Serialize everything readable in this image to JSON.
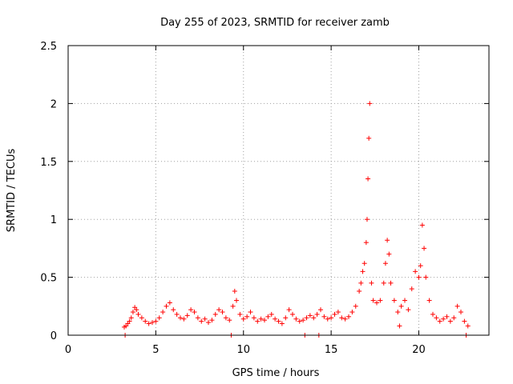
{
  "chart_data": {
    "type": "scatter",
    "title": "Day 255 of 2023, SRMTID for receiver zamb",
    "xlabel": "GPS time / hours",
    "ylabel": "SRMTID / TECUs",
    "xlim": [
      0,
      24
    ],
    "ylim": [
      0,
      2.5
    ],
    "grid": true,
    "marker": "+",
    "marker_color": "#ff0000",
    "x_ticks": [
      0,
      5,
      10,
      15,
      20
    ],
    "x_tick_labels": [
      "0",
      "5",
      "10",
      "15",
      "20"
    ],
    "y_ticks": [
      0,
      0.5,
      1,
      1.5,
      2,
      2.5
    ],
    "y_tick_labels": [
      "0",
      "0.5",
      "1",
      "1.5",
      "2",
      "2.5"
    ],
    "series": [
      {
        "name": "SRMTID",
        "x": [
          3.2,
          3.3,
          3.4,
          3.5,
          3.6,
          3.7,
          3.8,
          3.9,
          4.0,
          4.2,
          4.4,
          4.6,
          4.8,
          5.0,
          5.2,
          5.4,
          5.6,
          5.8,
          6.0,
          6.2,
          6.4,
          6.6,
          6.8,
          7.0,
          7.2,
          7.4,
          7.6,
          7.8,
          8.0,
          8.2,
          8.4,
          8.6,
          8.8,
          9.0,
          9.2,
          9.4,
          9.5,
          9.6,
          9.8,
          10.0,
          10.2,
          10.4,
          10.6,
          10.8,
          11.0,
          11.2,
          11.4,
          11.6,
          11.8,
          12.0,
          12.2,
          12.4,
          12.6,
          12.8,
          13.0,
          13.2,
          13.4,
          13.6,
          13.8,
          14.0,
          14.2,
          14.4,
          14.6,
          14.8,
          15.0,
          15.2,
          15.4,
          15.6,
          15.8,
          16.0,
          16.2,
          16.4,
          16.6,
          16.7,
          16.8,
          16.9,
          17.0,
          17.05,
          17.1,
          17.15,
          17.2,
          17.3,
          17.4,
          17.6,
          17.8,
          18.0,
          18.1,
          18.2,
          18.3,
          18.4,
          18.6,
          18.8,
          19.0,
          19.2,
          19.4,
          19.6,
          19.8,
          20.0,
          20.1,
          20.2,
          20.3,
          20.4,
          20.6,
          20.8,
          21.0,
          21.2,
          21.4,
          21.6,
          21.8,
          22.0,
          22.2,
          22.4,
          22.6,
          22.8,
          3.25,
          9.3,
          13.5,
          14.3,
          18.9,
          22.7
        ],
        "y": [
          0.07,
          0.08,
          0.1,
          0.12,
          0.15,
          0.2,
          0.24,
          0.22,
          0.18,
          0.15,
          0.12,
          0.1,
          0.11,
          0.12,
          0.15,
          0.2,
          0.25,
          0.28,
          0.22,
          0.18,
          0.15,
          0.14,
          0.17,
          0.22,
          0.2,
          0.15,
          0.12,
          0.14,
          0.11,
          0.13,
          0.18,
          0.22,
          0.2,
          0.15,
          0.13,
          0.25,
          0.38,
          0.3,
          0.18,
          0.14,
          0.16,
          0.2,
          0.15,
          0.12,
          0.14,
          0.13,
          0.16,
          0.18,
          0.14,
          0.12,
          0.1,
          0.15,
          0.22,
          0.18,
          0.14,
          0.12,
          0.13,
          0.15,
          0.17,
          0.15,
          0.18,
          0.22,
          0.16,
          0.14,
          0.15,
          0.18,
          0.2,
          0.15,
          0.14,
          0.16,
          0.2,
          0.25,
          0.38,
          0.45,
          0.55,
          0.62,
          0.8,
          1.0,
          1.35,
          1.7,
          2.0,
          0.45,
          0.3,
          0.28,
          0.3,
          0.45,
          0.62,
          0.82,
          0.7,
          0.45,
          0.3,
          0.2,
          0.25,
          0.3,
          0.22,
          0.4,
          0.55,
          0.5,
          0.6,
          0.95,
          0.75,
          0.5,
          0.3,
          0.18,
          0.15,
          0.12,
          0.14,
          0.16,
          0.12,
          0.15,
          0.25,
          0.2,
          0.12,
          0.08,
          0.0,
          0.0,
          0.0,
          0.0,
          0.08,
          0.0
        ]
      }
    ]
  }
}
